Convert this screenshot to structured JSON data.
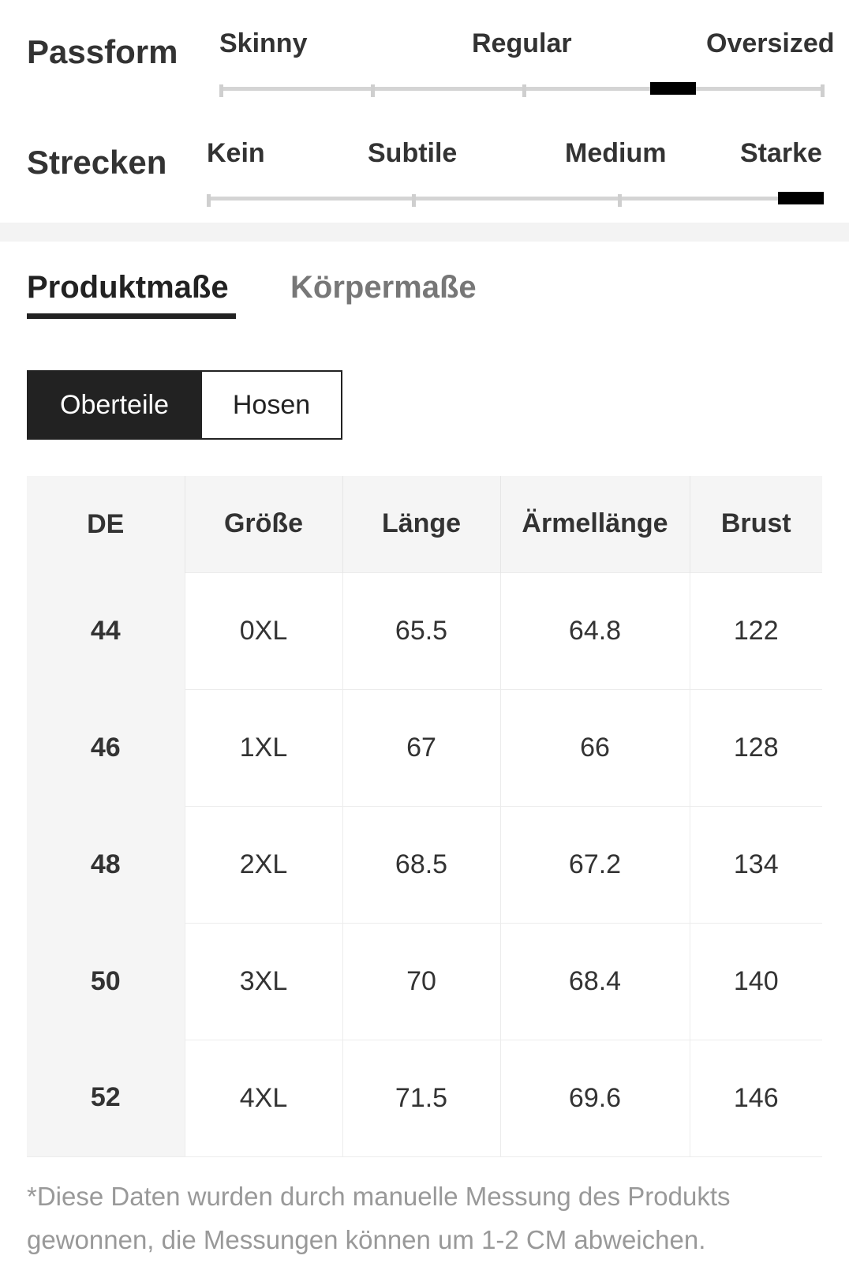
{
  "fit_scales": [
    {
      "title": "Passform",
      "labels": [
        "Skinny",
        "Regular",
        "Oversized"
      ],
      "selected": "Oversized",
      "level_fraction": 0.75
    },
    {
      "title": "Strecken",
      "labels": [
        "Kein",
        "Subtile",
        "Medium",
        "Starke"
      ],
      "selected": "Starke",
      "level_fraction": 1.0
    }
  ],
  "tabs": [
    {
      "label": "Produktmaße",
      "active": true
    },
    {
      "label": "Körpermaße",
      "active": false
    }
  ],
  "category_toggle": [
    {
      "label": "Oberteile",
      "active": true
    },
    {
      "label": "Hosen",
      "active": false
    }
  ],
  "size_table": {
    "headers": [
      "DE",
      "Größe",
      "Länge",
      "Ärmellänge",
      "Brust"
    ],
    "rows": [
      [
        "44",
        "0XL",
        "65.5",
        "64.8",
        "122"
      ],
      [
        "46",
        "1XL",
        "67",
        "66",
        "128"
      ],
      [
        "48",
        "2XL",
        "68.5",
        "67.2",
        "134"
      ],
      [
        "50",
        "3XL",
        "70",
        "68.4",
        "140"
      ],
      [
        "52",
        "4XL",
        "71.5",
        "69.6",
        "146"
      ]
    ]
  },
  "footnote": "*Diese Daten wurden durch manuelle Messung des Produkts gewonnen, die Messungen können um 1-2 CM abweichen.",
  "colors": {
    "primary": "#222222",
    "muted_text": "#999999",
    "track": "#d4d4d4",
    "header_bg": "#f5f5f5"
  }
}
